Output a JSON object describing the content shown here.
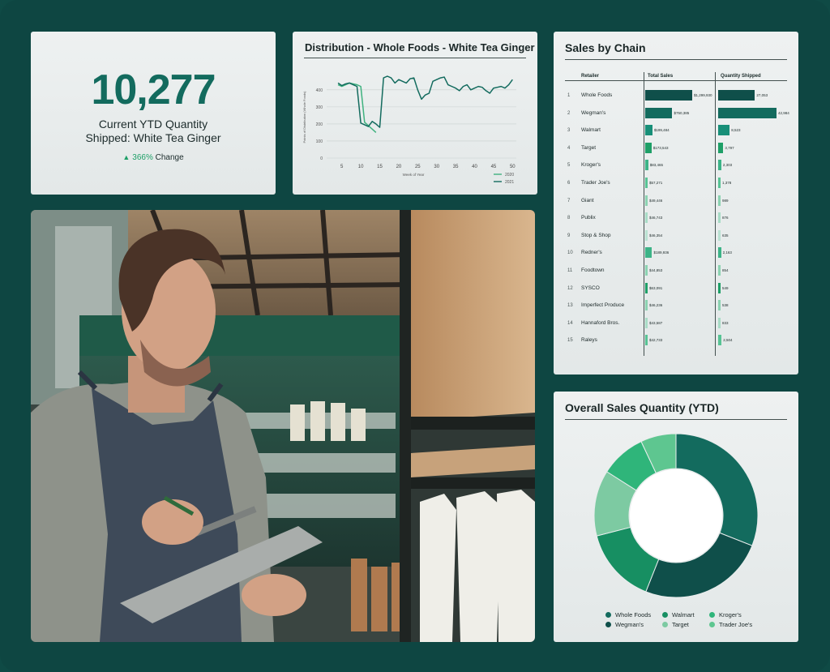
{
  "kpi": {
    "value": "10,277",
    "label_line1": "Current YTD Quantity",
    "label_line2": "Shipped: White Tea Ginger",
    "change_pct": "366%",
    "change_suffix": " Change",
    "change_icon": "triangle-up-icon"
  },
  "distribution": {
    "title": "Distribution - Whole Foods - White Tea Ginger",
    "chart_data": {
      "type": "line",
      "title": "Distribution - Whole Foods - White Tea Ginger",
      "xlabel": "Week of Year",
      "ylabel": "Points of Distribution (Whole Foods)",
      "x_ticks": [
        5,
        10,
        15,
        20,
        25,
        30,
        35,
        40,
        45,
        50
      ],
      "y_ticks": [
        0,
        100,
        200,
        300,
        400
      ],
      "ylim": [
        0,
        480
      ],
      "xlim": [
        1,
        51
      ],
      "series": [
        {
          "name": "2020",
          "color": "#3fb27f",
          "x": [
            4,
            5,
            6,
            7,
            8,
            9,
            10,
            11,
            12,
            13,
            14
          ],
          "y": [
            430,
            420,
            430,
            440,
            435,
            430,
            420,
            210,
            190,
            170,
            150
          ]
        },
        {
          "name": "2021",
          "color": "#136b5e",
          "x": [
            4,
            5,
            6,
            7,
            8,
            9,
            10,
            11,
            12,
            13,
            14,
            15,
            16,
            17,
            18,
            19,
            20,
            21,
            22,
            23,
            24,
            25,
            26,
            27,
            28,
            29,
            30,
            31,
            32,
            33,
            34,
            35,
            36,
            37,
            38,
            39,
            40,
            41,
            42,
            43,
            44,
            45,
            46,
            47,
            48,
            49,
            50
          ],
          "y": [
            440,
            425,
            435,
            440,
            430,
            420,
            205,
            195,
            185,
            215,
            200,
            180,
            470,
            480,
            470,
            440,
            460,
            450,
            440,
            465,
            470,
            400,
            345,
            370,
            380,
            450,
            460,
            470,
            475,
            430,
            420,
            410,
            395,
            420,
            430,
            400,
            410,
            420,
            415,
            395,
            380,
            410,
            415,
            420,
            410,
            430,
            460
          ]
        }
      ],
      "legend_position": "bottom-right",
      "grid": true
    }
  },
  "chain": {
    "title": "Sales by Chain",
    "headers": [
      "Retailer",
      "Total Sales",
      "Quantity Shipped"
    ],
    "chart_data": {
      "type": "table",
      "columns": [
        "Retailer",
        "Total Sales",
        "Quantity Shipped"
      ],
      "rows": [
        {
          "rank": "1",
          "retailer": "Whole Foods",
          "sales": "$1,299,930",
          "sales_val": 1299930,
          "qty": "27,053",
          "qty_val": 27053
        },
        {
          "rank": "2",
          "retailer": "Wegman's",
          "sales": "$750,385",
          "sales_val": 750385,
          "qty": "42,984",
          "qty_val": 42984
        },
        {
          "rank": "3",
          "retailer": "Walmart",
          "sales": "$199,484",
          "sales_val": 199484,
          "qty": "8,523",
          "qty_val": 8523
        },
        {
          "rank": "4",
          "retailer": "Target",
          "sales": "$173,543",
          "sales_val": 173543,
          "qty": "3,797",
          "qty_val": 3797
        },
        {
          "rank": "5",
          "retailer": "Kroger's",
          "sales": "$83,465",
          "sales_val": 83465,
          "qty": "2,303",
          "qty_val": 2303
        },
        {
          "rank": "6",
          "retailer": "Trader Joe's",
          "sales": "$57,271",
          "sales_val": 57271,
          "qty": "1,378",
          "qty_val": 1378
        },
        {
          "rank": "7",
          "retailer": "Giant",
          "sales": "$49,446",
          "sales_val": 49446,
          "qty": "989",
          "qty_val": 989
        },
        {
          "rank": "8",
          "retailer": "Publix",
          "sales": "$46,743",
          "sales_val": 46743,
          "qty": "876",
          "qty_val": 876
        },
        {
          "rank": "9",
          "retailer": "Stop & Shop",
          "sales": "$46,354",
          "sales_val": 46354,
          "qty": "635",
          "qty_val": 635
        },
        {
          "rank": "10",
          "retailer": "Redner's",
          "sales": "$189,936",
          "sales_val": 189936,
          "qty": "2,163",
          "qty_val": 2163
        },
        {
          "rank": "11",
          "retailer": "Foodtown",
          "sales": "$44,853",
          "sales_val": 44853,
          "qty": "854",
          "qty_val": 854
        },
        {
          "rank": "12",
          "retailer": "SYSCO",
          "sales": "$63,091",
          "sales_val": 63091,
          "qty": "549",
          "qty_val": 549
        },
        {
          "rank": "13",
          "retailer": "Imperfect Produce",
          "sales": "$46,236",
          "sales_val": 46236,
          "qty": "538",
          "qty_val": 538
        },
        {
          "rank": "14",
          "retailer": "Hannaford Bros.",
          "sales": "$43,587",
          "sales_val": 43587,
          "qty": "833",
          "qty_val": 833
        },
        {
          "rank": "15",
          "retailer": "Raleys",
          "sales": "$42,733",
          "sales_val": 42733,
          "qty": "2,504",
          "qty_val": 2504
        }
      ],
      "colors": [
        "#0f4f4a",
        "#136b5e",
        "#178f78",
        "#1e9f67",
        "#3cb387",
        "#57c394",
        "#8bd3b1",
        "#a8dcc6",
        "#b9e2d2",
        "#3cb387",
        "#8bd3b1",
        "#1e9f67",
        "#8bd3b1",
        "#a8dcc6",
        "#57c394"
      ]
    }
  },
  "overall": {
    "title": "Overall Sales Quantity (YTD)",
    "chart_data": {
      "type": "pie",
      "donut": true,
      "labels": [
        "Whole Foods",
        "Wegman's",
        "Walmart",
        "Target",
        "Kroger's",
        "Trader Joe's"
      ],
      "values": [
        31,
        25,
        15,
        13,
        9,
        7
      ],
      "colors": [
        "#136b5e",
        "#0f4f4a",
        "#178f62",
        "#7dcaa2",
        "#2fb57a",
        "#5ec690"
      ]
    },
    "legend": [
      "Whole Foods",
      "Walmart",
      "Kroger's",
      "Wegman's",
      "Target",
      "Trader Joe's"
    ]
  }
}
